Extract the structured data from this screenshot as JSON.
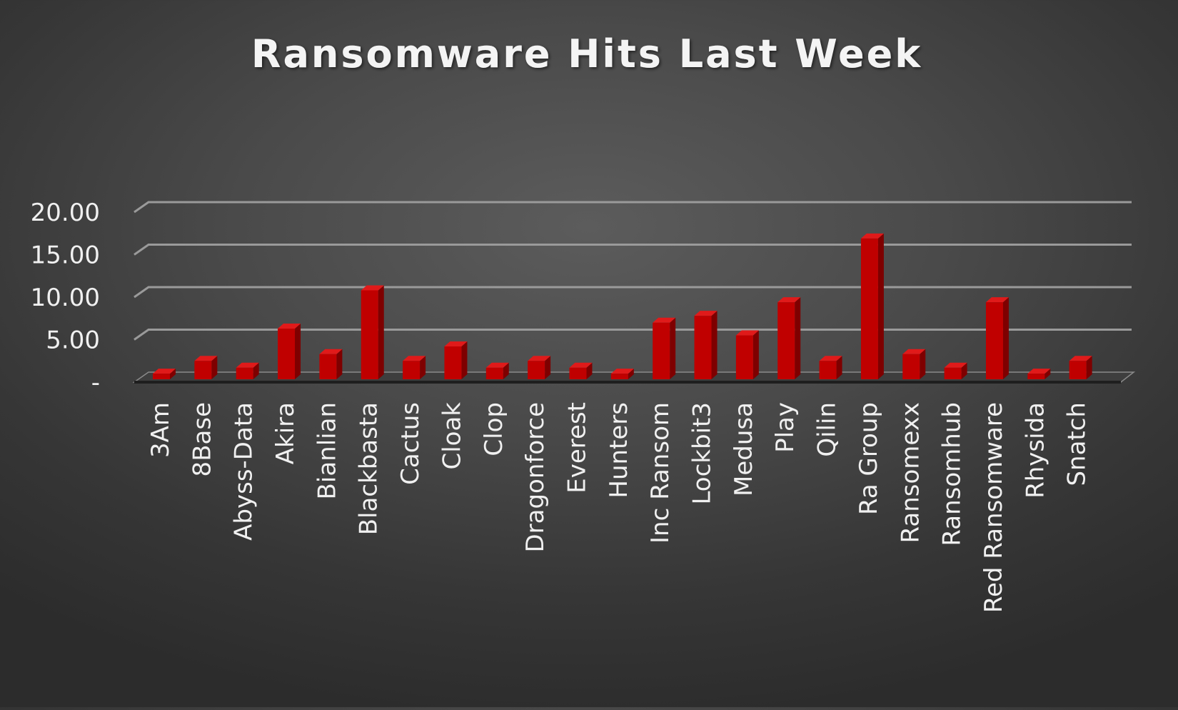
{
  "chart_data": {
    "type": "bar",
    "title": "Ransomware Hits Last Week",
    "xlabel": "",
    "ylabel": "",
    "ylim": [
      0,
      20
    ],
    "y_ticks": [
      {
        "value": 0,
        "label": "-"
      },
      {
        "value": 5,
        "label": "5.00"
      },
      {
        "value": 10,
        "label": "10.00"
      },
      {
        "value": 15,
        "label": "15.00"
      },
      {
        "value": 20,
        "label": "20.00"
      }
    ],
    "grid": true,
    "legend": "none",
    "categories": [
      "3Am",
      "8Base",
      "Abyss-Data",
      "Akira",
      "Bianlian",
      "Blackbasta",
      "Cactus",
      "Cloak",
      "Clop",
      "Dragonforce",
      "Everest",
      "Hunters",
      "Inc Ransom",
      "Lockbit3",
      "Medusa",
      "Play",
      "Qilin",
      "Ra Group",
      "Ransomexx",
      "Ransomhub",
      "Red Ransomware",
      "Rhysida",
      "Snatch"
    ],
    "values": [
      1,
      2.5,
      1.7,
      6.3,
      3.3,
      10.8,
      2.5,
      4.2,
      1.7,
      2.5,
      1.7,
      1,
      7,
      7.8,
      5.5,
      9.4,
      2.5,
      16.9,
      3.3,
      1.7,
      9.4,
      1,
      2.5
    ]
  },
  "colors": {
    "bar_front": "#c00000",
    "bar_top": "#e01a1a",
    "bar_side": "#7e0000",
    "gridline": "#9a9a9a",
    "text": "#f0f0f0"
  }
}
